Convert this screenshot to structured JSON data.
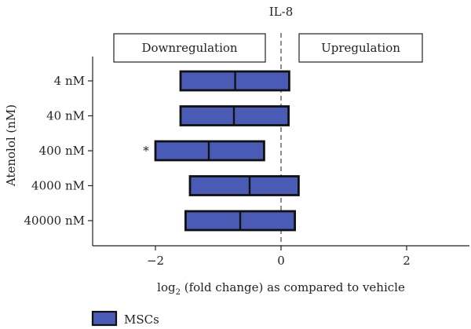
{
  "chart_data": {
    "type": "bar",
    "orientation": "horizontal",
    "title": "IL-8",
    "xlabel_prefix": "log",
    "xlabel_subscript": "2",
    "xlabel_suffix": " (fold change) as compared to vehicle",
    "ylabel": "Atenolol (nM)",
    "xlim": [
      -3,
      3
    ],
    "xticks": [
      -2,
      0,
      2
    ],
    "xtick_labels": [
      "−2",
      "0",
      "2"
    ],
    "categories": [
      "4 nM",
      "40 nM",
      "400 nM",
      "4000 nM",
      "40000 nM"
    ],
    "series": [
      {
        "name": "MSCs",
        "color": "#4a5bb5",
        "boxes": [
          {
            "low": -1.6,
            "median": -0.73,
            "high": 0.13
          },
          {
            "low": -1.6,
            "median": -0.75,
            "high": 0.12
          },
          {
            "low": -2.0,
            "median": -1.15,
            "high": -0.27
          },
          {
            "low": -1.45,
            "median": -0.5,
            "high": 0.28
          },
          {
            "low": -1.52,
            "median": -0.65,
            "high": 0.22
          }
        ]
      }
    ],
    "annotations": [
      {
        "category_index": 2,
        "text": "*"
      }
    ],
    "zero_line": "dashed",
    "region_labels": {
      "left": "Downregulation",
      "right": "Upregulation"
    },
    "legend_placement": "bottom-left",
    "grid": false
  }
}
